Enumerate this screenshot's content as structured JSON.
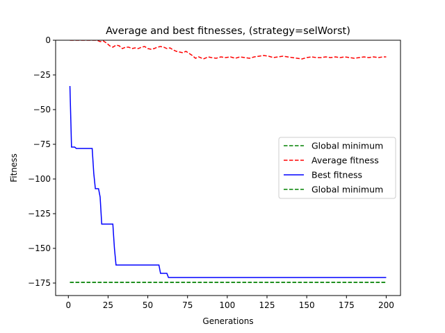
{
  "chart_data": {
    "type": "line",
    "title": "Average and best fitnesses, (strategy=selWorst)",
    "xlabel": "Generations",
    "ylabel": "Fitness",
    "xlim": [
      -8,
      209
    ],
    "ylim": [
      -184,
      0
    ],
    "xticks": [
      0,
      25,
      50,
      75,
      100,
      125,
      150,
      175,
      200
    ],
    "yticks": [
      0,
      -25,
      -50,
      -75,
      -100,
      -125,
      -150,
      -175
    ],
    "grid": false,
    "legend_position": "center-right",
    "series": [
      {
        "name": "Global minimum",
        "color": "#008000",
        "style": "dashed",
        "x": [
          1,
          200
        ],
        "y": [
          -174.5,
          -174.5
        ]
      },
      {
        "name": "Average fitness",
        "color": "#ff0000",
        "style": "dashed",
        "x": [
          1,
          3,
          5,
          8,
          10,
          12,
          14,
          16,
          18,
          20,
          22,
          24,
          26,
          28,
          30,
          32,
          34,
          36,
          38,
          40,
          42,
          44,
          46,
          48,
          50,
          52,
          54,
          56,
          58,
          60,
          62,
          64,
          66,
          68,
          70,
          72,
          74,
          76,
          78,
          80,
          82,
          85,
          88,
          90,
          93,
          96,
          99,
          102,
          105,
          108,
          111,
          114,
          117,
          120,
          123,
          126,
          129,
          132,
          135,
          138,
          141,
          144,
          147,
          150,
          153,
          156,
          159,
          162,
          165,
          168,
          171,
          174,
          177,
          180,
          183,
          186,
          189,
          192,
          195,
          198,
          200
        ],
        "y": [
          0,
          0,
          0,
          0,
          0,
          0,
          0,
          0,
          0,
          -1,
          -0.5,
          -2,
          -4,
          -5,
          -3.5,
          -4,
          -6,
          -5,
          -5,
          -6,
          -5.5,
          -6,
          -5,
          -4.5,
          -6,
          -6.5,
          -6,
          -5,
          -4.5,
          -5,
          -6,
          -5.5,
          -7,
          -8,
          -8.5,
          -9,
          -8,
          -9.5,
          -11,
          -13,
          -12,
          -13.5,
          -12,
          -12.5,
          -13,
          -12,
          -12.5,
          -12,
          -13,
          -12,
          -12.5,
          -13,
          -12,
          -11.5,
          -11,
          -11.5,
          -12.5,
          -12,
          -11.5,
          -12,
          -12.5,
          -13,
          -13.5,
          -12.5,
          -12,
          -12.5,
          -12.5,
          -12,
          -12.5,
          -12,
          -12.5,
          -12,
          -12.5,
          -13,
          -12.5,
          -12,
          -12.5,
          -12,
          -12.5,
          -12,
          -12
        ]
      },
      {
        "name": "Best fitness",
        "color": "#0000ff",
        "style": "solid",
        "x": [
          1,
          2,
          3,
          4,
          5,
          15,
          16,
          17,
          18,
          19,
          20,
          21,
          28,
          29,
          30,
          31,
          56,
          57,
          58,
          62,
          63,
          64,
          200
        ],
        "y": [
          -33,
          -77,
          -77,
          -77,
          -78,
          -78,
          -96,
          -107,
          -107,
          -107,
          -113,
          -132.5,
          -132.5,
          -150,
          -162,
          -162,
          -162,
          -162,
          -168,
          -168,
          -171,
          -171,
          -171
        ]
      },
      {
        "name": "Global minimum",
        "color": "#008000",
        "style": "dashed",
        "x": [
          1,
          200
        ],
        "y": [
          -174.5,
          -174.5
        ]
      }
    ]
  }
}
